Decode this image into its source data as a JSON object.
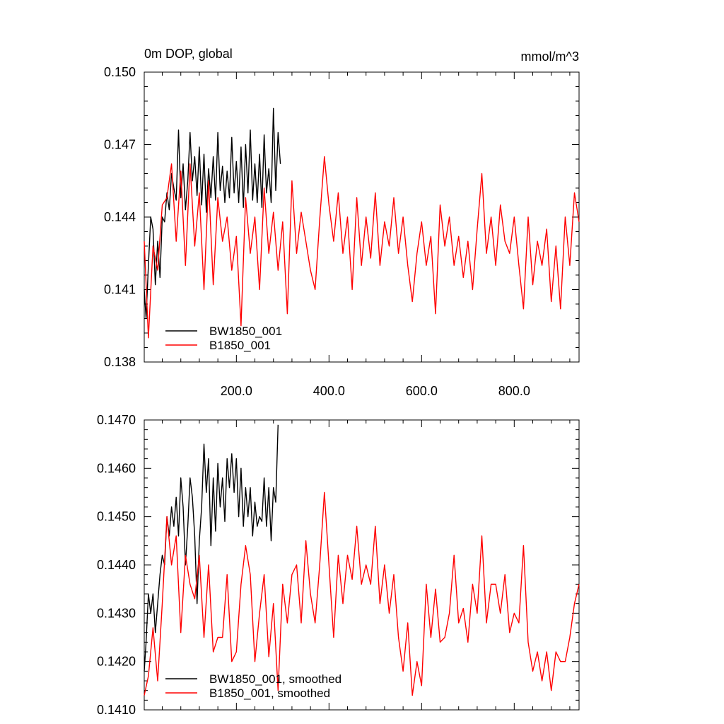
{
  "chart_data": [
    {
      "type": "line",
      "title": "0m DOP, global",
      "units": "mmol/m^3",
      "xlim": [
        1,
        940
      ],
      "ylim": [
        0.138,
        0.15
      ],
      "xticks": [
        200,
        400,
        600,
        800
      ],
      "xtick_labels": [
        "200.0",
        "400.0",
        "600.0",
        "800.0"
      ],
      "yticks": [
        0.138,
        0.141,
        0.144,
        0.147,
        0.15
      ],
      "ytick_labels": [
        "0.138",
        "0.141",
        "0.144",
        "0.147",
        "0.150"
      ],
      "grid": false,
      "legend_position": "bottom-left",
      "series": [
        {
          "name": "BW1850_001",
          "color": "#000000",
          "x": [
            1,
            5,
            10,
            15,
            20,
            25,
            30,
            35,
            40,
            45,
            50,
            55,
            60,
            65,
            70,
            75,
            80,
            85,
            90,
            95,
            100,
            105,
            110,
            115,
            120,
            125,
            130,
            135,
            140,
            145,
            150,
            155,
            160,
            165,
            170,
            175,
            180,
            185,
            190,
            195,
            200,
            205,
            210,
            215,
            220,
            225,
            230,
            235,
            240,
            245,
            250,
            255,
            260,
            265,
            270,
            275,
            280,
            285,
            290,
            295
          ],
          "y": [
            0.141,
            0.1398,
            0.142,
            0.144,
            0.1435,
            0.1412,
            0.143,
            0.1415,
            0.144,
            0.1438,
            0.145,
            0.1443,
            0.1458,
            0.1452,
            0.1447,
            0.1476,
            0.1448,
            0.1462,
            0.1443,
            0.1455,
            0.1475,
            0.1455,
            0.1465,
            0.1449,
            0.1469,
            0.1445,
            0.1466,
            0.1442,
            0.146,
            0.1448,
            0.1465,
            0.1447,
            0.1475,
            0.1451,
            0.1461,
            0.1446,
            0.1459,
            0.1448,
            0.1473,
            0.145,
            0.1463,
            0.1446,
            0.1469,
            0.1444,
            0.147,
            0.145,
            0.1476,
            0.1447,
            0.1462,
            0.1446,
            0.1466,
            0.1444,
            0.1474,
            0.145,
            0.146,
            0.1446,
            0.1485,
            0.1451,
            0.1475,
            0.1462
          ]
        },
        {
          "name": "B1850_001",
          "color": "#ff0000",
          "x": [
            1,
            10,
            20,
            30,
            40,
            50,
            60,
            70,
            80,
            90,
            100,
            110,
            120,
            130,
            140,
            150,
            160,
            170,
            180,
            190,
            200,
            210,
            220,
            230,
            240,
            250,
            260,
            270,
            280,
            290,
            300,
            310,
            320,
            330,
            340,
            350,
            360,
            370,
            380,
            390,
            400,
            410,
            420,
            430,
            440,
            450,
            460,
            470,
            480,
            490,
            500,
            510,
            520,
            530,
            540,
            550,
            560,
            570,
            580,
            590,
            600,
            610,
            620,
            630,
            640,
            650,
            660,
            670,
            680,
            690,
            700,
            710,
            720,
            730,
            740,
            750,
            760,
            770,
            780,
            790,
            800,
            810,
            820,
            830,
            840,
            850,
            860,
            870,
            880,
            890,
            900,
            910,
            920,
            930,
            940
          ],
          "y": [
            0.143,
            0.139,
            0.1428,
            0.1418,
            0.1445,
            0.1448,
            0.1462,
            0.143,
            0.1459,
            0.142,
            0.1462,
            0.1428,
            0.145,
            0.141,
            0.1455,
            0.1412,
            0.1448,
            0.143,
            0.144,
            0.1418,
            0.1432,
            0.1395,
            0.1448,
            0.1425,
            0.144,
            0.141,
            0.1452,
            0.1425,
            0.1442,
            0.1418,
            0.1438,
            0.14,
            0.1455,
            0.1425,
            0.1442,
            0.143,
            0.1418,
            0.141,
            0.1439,
            0.1465,
            0.1445,
            0.143,
            0.145,
            0.1425,
            0.144,
            0.141,
            0.1448,
            0.142,
            0.144,
            0.1423,
            0.145,
            0.142,
            0.1438,
            0.1428,
            0.1448,
            0.1425,
            0.144,
            0.142,
            0.1405,
            0.1425,
            0.1438,
            0.142,
            0.1432,
            0.14,
            0.1445,
            0.1428,
            0.144,
            0.142,
            0.1432,
            0.1415,
            0.143,
            0.141,
            0.1435,
            0.1458,
            0.1425,
            0.144,
            0.142,
            0.1445,
            0.143,
            0.1425,
            0.144,
            0.142,
            0.1402,
            0.144,
            0.1412,
            0.143,
            0.142,
            0.1435,
            0.1405,
            0.1428,
            0.1402,
            0.144,
            0.142,
            0.145,
            0.1438
          ]
        }
      ]
    },
    {
      "type": "line",
      "xlim": [
        1,
        940
      ],
      "ylim": [
        0.141,
        0.147
      ],
      "xticks": [
        200,
        400,
        600,
        800
      ],
      "yticks": [
        0.141,
        0.142,
        0.143,
        0.144,
        0.145,
        0.146,
        0.147
      ],
      "ytick_labels": [
        "0.1410",
        "0.1420",
        "0.1430",
        "0.1440",
        "0.1450",
        "0.1460",
        "0.1470"
      ],
      "grid": false,
      "legend_position": "bottom-left",
      "series": [
        {
          "name": "BW1850_001, smoothed",
          "color": "#000000",
          "x": [
            1,
            5,
            10,
            15,
            20,
            25,
            30,
            35,
            40,
            45,
            50,
            55,
            60,
            65,
            70,
            75,
            80,
            85,
            90,
            95,
            100,
            105,
            110,
            115,
            120,
            125,
            130,
            135,
            140,
            145,
            150,
            155,
            160,
            165,
            170,
            175,
            180,
            185,
            190,
            195,
            200,
            205,
            210,
            215,
            220,
            225,
            230,
            235,
            240,
            245,
            250,
            255,
            260,
            265,
            270,
            275,
            280,
            285,
            290
          ],
          "y": [
            0.1418,
            0.1424,
            0.1434,
            0.143,
            0.1434,
            0.1426,
            0.1432,
            0.1438,
            0.1442,
            0.144,
            0.145,
            0.1446,
            0.1452,
            0.1448,
            0.1454,
            0.1446,
            0.1458,
            0.1452,
            0.144,
            0.1448,
            0.1458,
            0.1454,
            0.1446,
            0.1432,
            0.1445,
            0.1452,
            0.1465,
            0.1455,
            0.1462,
            0.1444,
            0.1458,
            0.1447,
            0.1461,
            0.1452,
            0.1458,
            0.1449,
            0.1462,
            0.1456,
            0.1463,
            0.1455,
            0.1462,
            0.145,
            0.146,
            0.1448,
            0.1456,
            0.145,
            0.1456,
            0.1446,
            0.1453,
            0.1448,
            0.145,
            0.1449,
            0.1458,
            0.1448,
            0.1456,
            0.1445,
            0.1456,
            0.1453,
            0.1469
          ]
        },
        {
          "name": "B1850_001, smoothed",
          "color": "#ff0000",
          "x": [
            1,
            10,
            20,
            30,
            40,
            50,
            60,
            70,
            80,
            90,
            100,
            110,
            120,
            130,
            140,
            150,
            160,
            170,
            180,
            190,
            200,
            210,
            220,
            230,
            240,
            250,
            260,
            270,
            280,
            290,
            300,
            310,
            320,
            330,
            340,
            350,
            360,
            370,
            380,
            390,
            400,
            410,
            420,
            430,
            440,
            450,
            460,
            470,
            480,
            490,
            500,
            510,
            520,
            530,
            540,
            550,
            560,
            570,
            580,
            590,
            600,
            610,
            620,
            630,
            640,
            650,
            660,
            670,
            680,
            690,
            700,
            710,
            720,
            730,
            740,
            750,
            760,
            770,
            780,
            790,
            800,
            810,
            820,
            830,
            840,
            850,
            860,
            870,
            880,
            890,
            900,
            910,
            920,
            930,
            940
          ],
          "y": [
            0.1413,
            0.1417,
            0.1427,
            0.1416,
            0.1432,
            0.145,
            0.144,
            0.1446,
            0.1426,
            0.1442,
            0.1436,
            0.1433,
            0.1442,
            0.1425,
            0.144,
            0.1422,
            0.1425,
            0.1425,
            0.1438,
            0.142,
            0.1422,
            0.1436,
            0.1444,
            0.1438,
            0.142,
            0.143,
            0.1438,
            0.1421,
            0.1432,
            0.1414,
            0.1436,
            0.1428,
            0.1438,
            0.144,
            0.1428,
            0.1445,
            0.1434,
            0.1428,
            0.144,
            0.1455,
            0.144,
            0.1425,
            0.1442,
            0.1432,
            0.1442,
            0.1437,
            0.1448,
            0.1436,
            0.144,
            0.1436,
            0.1448,
            0.1432,
            0.144,
            0.143,
            0.1438,
            0.1425,
            0.1418,
            0.1428,
            0.1413,
            0.142,
            0.1415,
            0.1436,
            0.1425,
            0.1435,
            0.1424,
            0.1425,
            0.143,
            0.1442,
            0.1428,
            0.1431,
            0.1424,
            0.1436,
            0.143,
            0.1446,
            0.1428,
            0.1436,
            0.1436,
            0.143,
            0.1438,
            0.1426,
            0.143,
            0.1428,
            0.1444,
            0.1424,
            0.1418,
            0.1422,
            0.1416,
            0.1422,
            0.1414,
            0.1422,
            0.142,
            0.142,
            0.1425,
            0.1432,
            0.1436
          ]
        }
      ]
    }
  ]
}
